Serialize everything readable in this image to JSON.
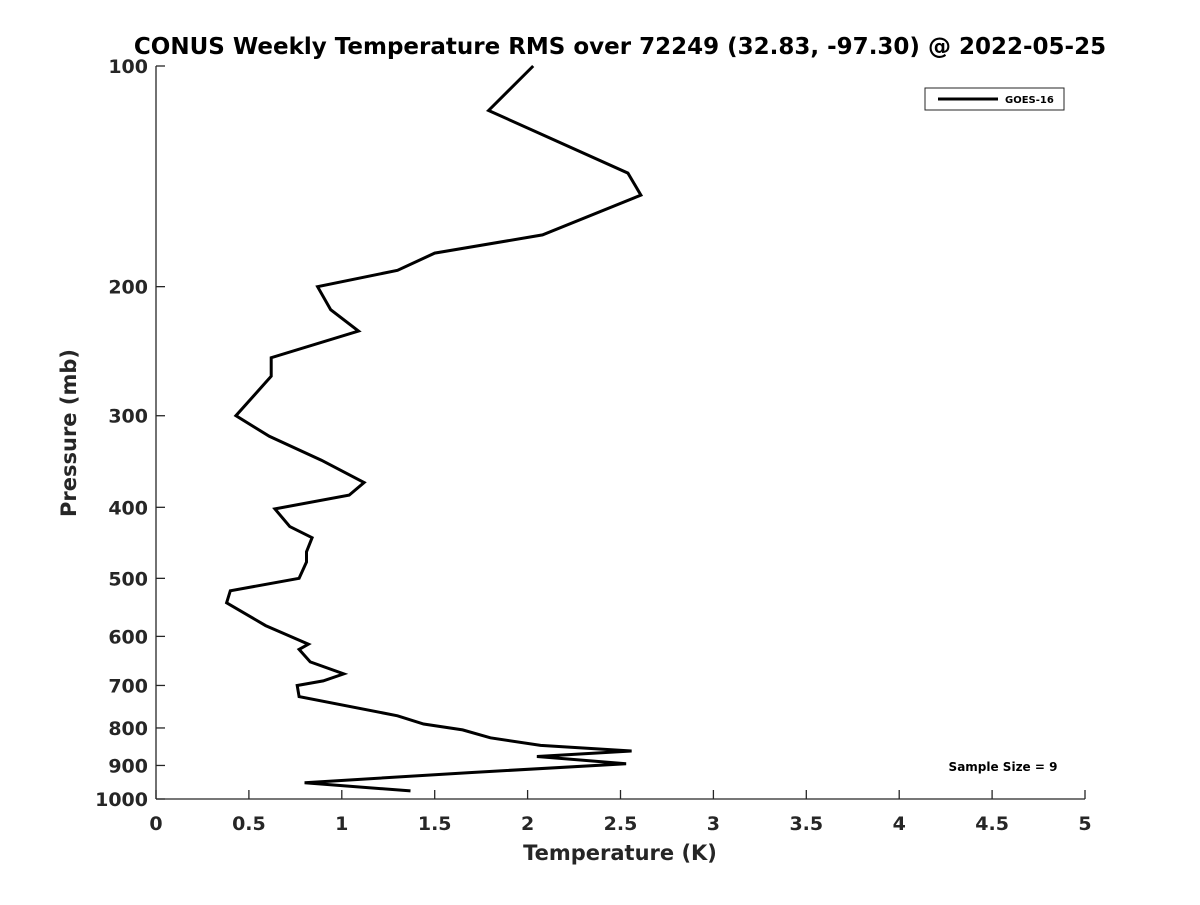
{
  "chart_data": {
    "type": "line",
    "title": "CONUS Weekly Temperature RMS over 72249 (32.83, -97.30) @ 2022-05-25",
    "xlabel": "Temperature (K)",
    "ylabel": "Pressure (mb)",
    "xlim": [
      0,
      5
    ],
    "ylim": [
      1000,
      100
    ],
    "y_scale": "log",
    "y_reversed": true,
    "grid": false,
    "legend_position": "top-right",
    "x_ticks": [
      "0",
      "0.5",
      "1",
      "1.5",
      "2",
      "2.5",
      "3",
      "3.5",
      "4",
      "4.5",
      "5"
    ],
    "y_ticks": [
      "100",
      "200",
      "300",
      "400",
      "500",
      "600",
      "700",
      "800",
      "900",
      "1000"
    ],
    "annotation": "Sample Size = 9",
    "series": [
      {
        "name": "GOES-16",
        "color": "#000000",
        "x": [
          2.03,
          1.79,
          2.54,
          2.61,
          2.08,
          1.5,
          1.3,
          0.87,
          0.94,
          1.09,
          0.62,
          0.62,
          0.43,
          0.61,
          0.89,
          1.12,
          1.04,
          0.64,
          0.72,
          0.84,
          0.81,
          0.81,
          0.77,
          0.4,
          0.38,
          0.59,
          0.82,
          0.77,
          0.83,
          1.01,
          0.9,
          0.76,
          0.77,
          1.3,
          1.44,
          1.65,
          1.8,
          2.07,
          2.56,
          2.05,
          2.53,
          1.7,
          0.8,
          1.37
        ],
        "y": [
          100,
          115,
          140,
          150,
          170,
          180,
          190,
          200,
          215,
          230,
          250,
          265,
          300,
          320,
          345,
          370,
          385,
          402,
          425,
          440,
          460,
          475,
          500,
          520,
          540,
          580,
          615,
          625,
          650,
          675,
          690,
          700,
          725,
          770,
          790,
          805,
          825,
          845,
          860,
          875,
          895,
          920,
          950,
          975
        ]
      }
    ]
  }
}
